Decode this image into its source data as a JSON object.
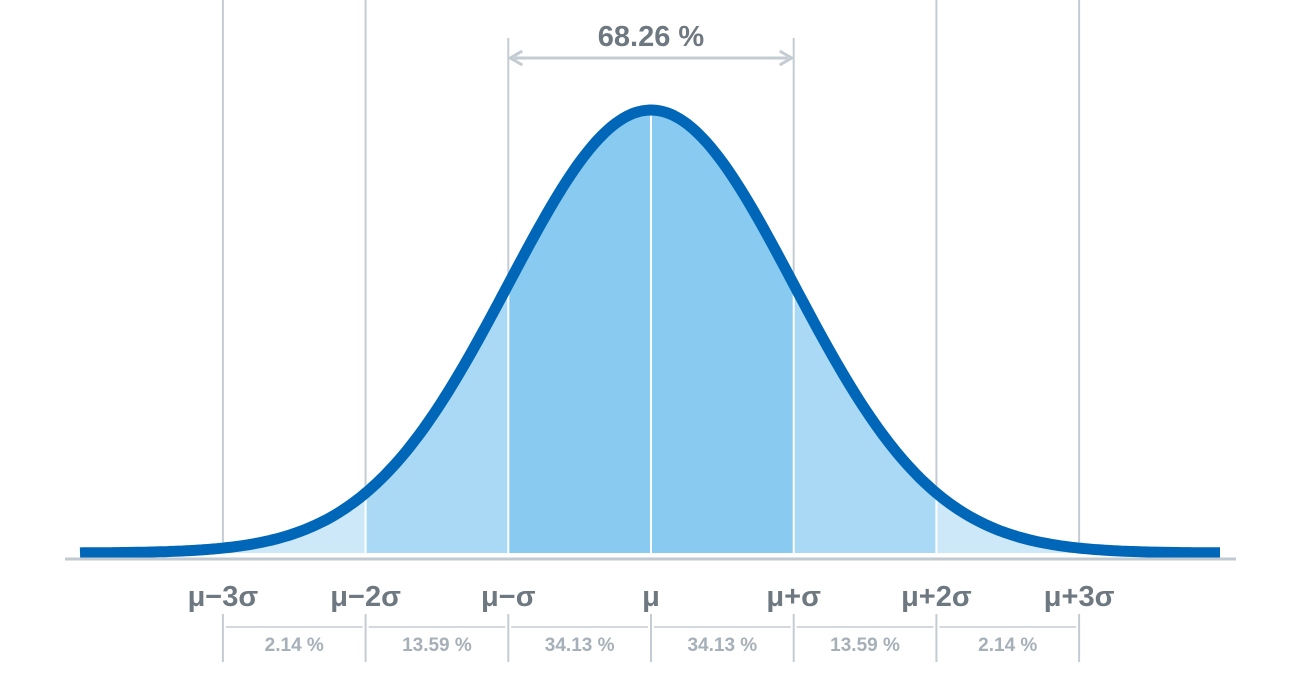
{
  "chart_data": {
    "type": "area",
    "title": "",
    "xlabel": "",
    "ylabel": "",
    "xlim": [
      -4,
      4
    ],
    "ticks": [
      {
        "x": -3,
        "label": "μ−3σ"
      },
      {
        "x": -2,
        "label": "μ−2σ"
      },
      {
        "x": -1,
        "label": "μ−σ"
      },
      {
        "x": 0,
        "label": "μ"
      },
      {
        "x": 1,
        "label": "μ+σ"
      },
      {
        "x": 2,
        "label": "μ+2σ"
      },
      {
        "x": 3,
        "label": "μ+3σ"
      }
    ],
    "segments": [
      {
        "from": -3,
        "to": -2,
        "percent": "2.14 %"
      },
      {
        "from": -2,
        "to": -1,
        "percent": "13.59 %"
      },
      {
        "from": -1,
        "to": 0,
        "percent": "34.13 %"
      },
      {
        "from": 0,
        "to": 1,
        "percent": "34.13 %"
      },
      {
        "from": 1,
        "to": 2,
        "percent": "13.59 %"
      },
      {
        "from": 2,
        "to": 3,
        "percent": "2.14 %"
      }
    ],
    "annotation": {
      "from": -1,
      "to": 1,
      "label": "68.26 %"
    },
    "colors": {
      "curve": "#0067b8",
      "band1": "#89caf1",
      "band2": "#aad9f5",
      "band3": "#cde8f8",
      "axis": "#c2cad1",
      "guide": "#c4ccd3",
      "divider": "#ffffff"
    }
  }
}
